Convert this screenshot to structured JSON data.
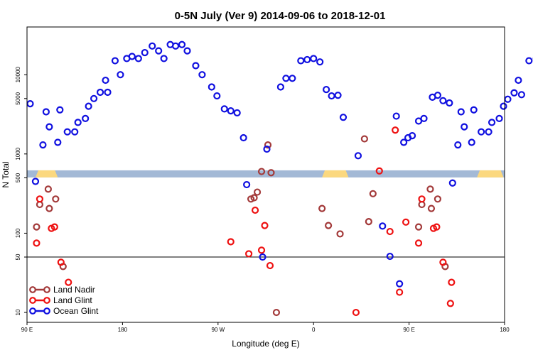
{
  "chart_data": {
    "type": "scatter",
    "title": "0-5N July (Ver 9)   2014-09-06 to 2018-12-01",
    "xlabel": "Longitude (deg E)",
    "ylabel": "N Total",
    "x_ticks": [
      {
        "value": 90,
        "label": "90 E"
      },
      {
        "value": 180,
        "label": "180"
      },
      {
        "value": 270,
        "label": "90 W"
      },
      {
        "value": 360,
        "label": "0"
      },
      {
        "value": 450,
        "label": "90 E"
      },
      {
        "value": 540,
        "label": "180"
      }
    ],
    "xlim": [
      90,
      540
    ],
    "y_scale": "log",
    "ylim": [
      7.5,
      40000
    ],
    "y_ticks": [
      {
        "value": 10,
        "label": "10"
      },
      {
        "value": 50,
        "label": "50"
      },
      {
        "value": 100,
        "label": "100"
      },
      {
        "value": 500,
        "label": "500"
      },
      {
        "value": 1000,
        "label": "1000"
      },
      {
        "value": 5000,
        "label": "5000"
      },
      {
        "value": 10000,
        "label": "10000"
      }
    ],
    "reference_line": 50,
    "land_mask_row": {
      "y_center": 560,
      "ocean_color": "#a3b9d6",
      "land_color": "#fbd87f",
      "land_spans": [
        [
          98,
          119
        ],
        [
          368,
          393
        ],
        [
          514,
          539
        ]
      ]
    },
    "legend_position": "bottom-left",
    "series": [
      {
        "name": "Land Nadir",
        "color": "#a33a3a",
        "points": [
          [
            99,
            120
          ],
          [
            102,
            230
          ],
          [
            110,
            360
          ],
          [
            111,
            205
          ],
          [
            117,
            270
          ],
          [
            124,
            38
          ],
          [
            301,
            270
          ],
          [
            304,
            280
          ],
          [
            307,
            330
          ],
          [
            311,
            600
          ],
          [
            317,
            1300
          ],
          [
            320,
            580
          ],
          [
            325,
            10
          ],
          [
            368,
            205
          ],
          [
            374,
            125
          ],
          [
            385,
            98
          ],
          [
            408,
            1550
          ],
          [
            412,
            140
          ],
          [
            416,
            315
          ],
          [
            459,
            120
          ],
          [
            462,
            230
          ],
          [
            470,
            360
          ],
          [
            471,
            205
          ],
          [
            477,
            270
          ],
          [
            484,
            38
          ]
        ]
      },
      {
        "name": "Land Glint",
        "color": "#ee1111",
        "points": [
          [
            99,
            75
          ],
          [
            102,
            270
          ],
          [
            113,
            115
          ],
          [
            116,
            120
          ],
          [
            122,
            43
          ],
          [
            129,
            24
          ],
          [
            282,
            78
          ],
          [
            299,
            55
          ],
          [
            305,
            195
          ],
          [
            311,
            61
          ],
          [
            314,
            125
          ],
          [
            319,
            39
          ],
          [
            400,
            10
          ],
          [
            422,
            610
          ],
          [
            432,
            105
          ],
          [
            437,
            2000
          ],
          [
            441,
            18
          ],
          [
            447,
            138
          ],
          [
            459,
            75
          ],
          [
            462,
            270
          ],
          [
            473,
            115
          ],
          [
            476,
            120
          ],
          [
            482,
            43
          ],
          [
            489,
            13
          ],
          [
            490,
            24
          ]
        ]
      },
      {
        "name": "Ocean Glint",
        "color": "#1010e0",
        "points": [
          [
            93,
            4300
          ],
          [
            98,
            450
          ],
          [
            105,
            1300
          ],
          [
            108,
            3400
          ],
          [
            111,
            2200
          ],
          [
            119,
            1400
          ],
          [
            121,
            3600
          ],
          [
            128,
            1900
          ],
          [
            135,
            1900
          ],
          [
            138,
            2500
          ],
          [
            145,
            2800
          ],
          [
            148,
            4000
          ],
          [
            153,
            5000
          ],
          [
            159,
            6000
          ],
          [
            164,
            8500
          ],
          [
            166,
            6000
          ],
          [
            173,
            15000
          ],
          [
            178,
            10000
          ],
          [
            184,
            16000
          ],
          [
            189,
            17000
          ],
          [
            195,
            16000
          ],
          [
            201,
            19000
          ],
          [
            208,
            23000
          ],
          [
            214,
            20000
          ],
          [
            219,
            16000
          ],
          [
            225,
            24000
          ],
          [
            230,
            23000
          ],
          [
            236,
            24000
          ],
          [
            241,
            20000
          ],
          [
            249,
            13000
          ],
          [
            255,
            10000
          ],
          [
            264,
            7000
          ],
          [
            269,
            5400
          ],
          [
            276,
            3700
          ],
          [
            282,
            3500
          ],
          [
            288,
            3300
          ],
          [
            294,
            1600
          ],
          [
            297,
            410
          ],
          [
            312,
            50
          ],
          [
            316,
            1150
          ],
          [
            329,
            7000
          ],
          [
            334,
            9000
          ],
          [
            340,
            9000
          ],
          [
            348,
            15000
          ],
          [
            354,
            15500
          ],
          [
            360,
            16000
          ],
          [
            366,
            14500
          ],
          [
            372,
            6500
          ],
          [
            377,
            5400
          ],
          [
            383,
            5500
          ],
          [
            388,
            2900
          ],
          [
            402,
            950
          ],
          [
            425,
            123
          ],
          [
            432,
            51
          ],
          [
            438,
            3000
          ],
          [
            441,
            23
          ],
          [
            445,
            1400
          ],
          [
            449,
            1600
          ],
          [
            453,
            1700
          ],
          [
            459,
            2600
          ],
          [
            464,
            2800
          ],
          [
            472,
            5200
          ],
          [
            477,
            5500
          ],
          [
            482,
            4700
          ],
          [
            488,
            4400
          ],
          [
            491,
            430
          ],
          [
            496,
            1300
          ],
          [
            499,
            3400
          ],
          [
            502,
            2200
          ],
          [
            509,
            1400
          ],
          [
            511,
            3600
          ],
          [
            518,
            1900
          ],
          [
            525,
            1900
          ],
          [
            528,
            2500
          ],
          [
            535,
            2800
          ],
          [
            539,
            4000
          ],
          [
            543,
            4900
          ],
          [
            549,
            5900
          ],
          [
            553,
            8500
          ],
          [
            556,
            5600
          ],
          [
            563,
            15000
          ],
          [
            570,
            16000
          ]
        ]
      }
    ]
  }
}
